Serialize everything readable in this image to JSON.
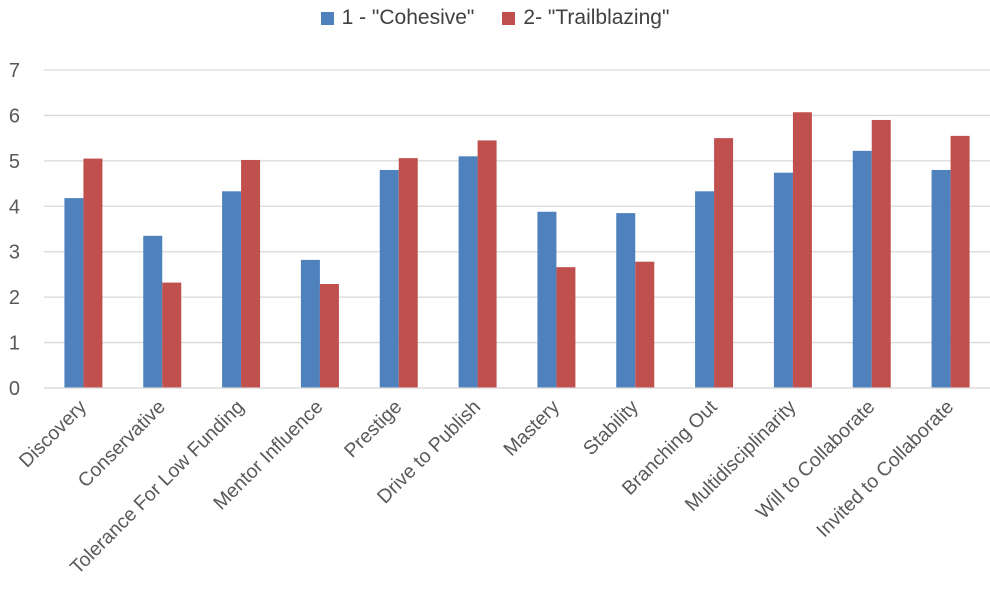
{
  "chart_data": {
    "type": "bar",
    "categories": [
      "Discovery",
      "Conservative",
      "Tolerance For Low Funding",
      "Mentor Influence",
      "Prestige",
      "Drive to Publish",
      "Mastery",
      "Stability",
      "Branching Out",
      "Multidisciplinarity",
      "Will to Collaborate",
      "Invited to Collaborate"
    ],
    "series": [
      {
        "name": "1 - \"Cohesive\"",
        "color": "#4F81BD",
        "values": [
          4.18,
          3.35,
          4.33,
          2.82,
          4.8,
          5.1,
          3.88,
          3.85,
          4.33,
          4.74,
          5.22,
          4.8
        ]
      },
      {
        "name": "2- \"Trailblazing\"",
        "color": "#C0504D",
        "values": [
          5.05,
          2.32,
          5.02,
          2.29,
          5.06,
          5.45,
          2.66,
          2.78,
          5.5,
          6.07,
          5.9,
          5.55
        ]
      }
    ],
    "ylim": [
      0,
      7
    ],
    "yticks": [
      0,
      1,
      2,
      3,
      4,
      5,
      6,
      7
    ],
    "grid": true,
    "legend_position": "top-center",
    "xlabel": "",
    "ylabel": "",
    "title": ""
  }
}
